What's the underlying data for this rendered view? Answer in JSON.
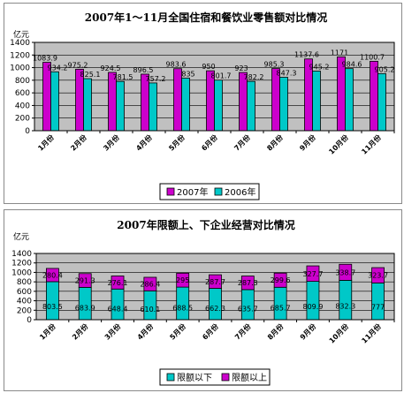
{
  "chart_data": [
    {
      "type": "bar",
      "title": "2007年1～11月全国住宿和餐饮业零售额对比情况",
      "ylabel": "亿元",
      "ylim": [
        0,
        1400
      ],
      "yticks": [
        0,
        200,
        400,
        600,
        800,
        1000,
        1200,
        1400
      ],
      "categories": [
        "1月份",
        "2月份",
        "3月份",
        "4月份",
        "5月份",
        "6月份",
        "7月份",
        "8月份",
        "9月份",
        "10月份",
        "11月份"
      ],
      "series": [
        {
          "name": "2007年",
          "color": "#cc00cc",
          "values": [
            1083.9,
            975.2,
            924.5,
            896.5,
            983.6,
            950,
            923,
            985.3,
            1137.6,
            1171,
            1100.7
          ]
        },
        {
          "name": "2006年",
          "color": "#00c8c8",
          "values": [
            934.2,
            825.1,
            781.5,
            757.2,
            835,
            801.7,
            782.2,
            847.3,
            945.2,
            984.6,
            905.2
          ]
        }
      ],
      "legend": "bottom",
      "grid": true,
      "background": "#c0c0c0"
    },
    {
      "type": "bar",
      "stacked": true,
      "title": "2007年限额上、下企业经营对比情况",
      "ylabel": "亿元",
      "ylim": [
        0,
        1400
      ],
      "yticks": [
        0,
        200,
        400,
        600,
        800,
        1000,
        1200,
        1400
      ],
      "categories": [
        "1月份",
        "2月份",
        "3月份",
        "4月份",
        "5月份",
        "6月份",
        "7月份",
        "8月份",
        "9月份",
        "10月份",
        "11月份"
      ],
      "series": [
        {
          "name": "限额以下",
          "color": "#00c8c8",
          "values": [
            803.5,
            683.9,
            648.4,
            610.1,
            688.5,
            662.3,
            635.7,
            685.7,
            809.9,
            832.3,
            777
          ]
        },
        {
          "name": "限额以上",
          "color": "#cc00cc",
          "values": [
            280.4,
            291.3,
            276.1,
            286.4,
            295,
            287.7,
            287.3,
            299.6,
            327.7,
            338.7,
            323.7
          ]
        }
      ],
      "legend": "bottom",
      "grid": true,
      "background": "#c0c0c0"
    }
  ]
}
